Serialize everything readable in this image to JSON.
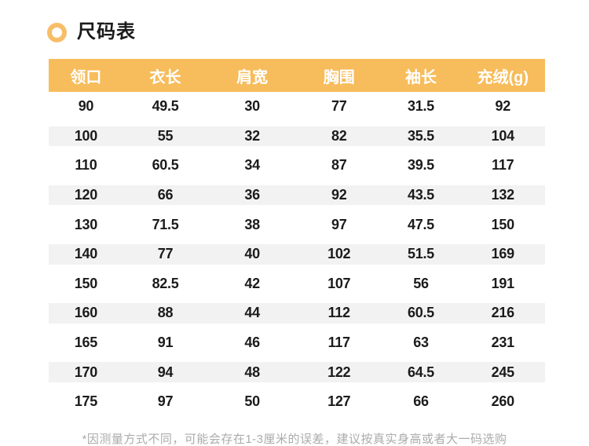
{
  "colors": {
    "header_bg": "#F7BC5B",
    "header_text": "#FFFFFF",
    "stripe": "#F2F2F3",
    "text": "#1B1B1B",
    "bullet_ring": "#F7BE69",
    "footnote_text": "#ABABAB"
  },
  "icons": {
    "section_bullet": "ring-circle"
  },
  "chart_data": {
    "type": "table",
    "title": "尺码表",
    "columns": [
      "领口",
      "衣长",
      "肩宽",
      "胸围",
      "袖长",
      "充绒(g)"
    ],
    "rows": [
      [
        "90",
        "49.5",
        "30",
        "77",
        "31.5",
        "92"
      ],
      [
        "100",
        "55",
        "32",
        "82",
        "35.5",
        "104"
      ],
      [
        "110",
        "60.5",
        "34",
        "87",
        "39.5",
        "117"
      ],
      [
        "120",
        "66",
        "36",
        "92",
        "43.5",
        "132"
      ],
      [
        "130",
        "71.5",
        "38",
        "97",
        "47.5",
        "150"
      ],
      [
        "140",
        "77",
        "40",
        "102",
        "51.5",
        "169"
      ],
      [
        "150",
        "82.5",
        "42",
        "107",
        "56",
        "191"
      ],
      [
        "160",
        "88",
        "44",
        "112",
        "60.5",
        "216"
      ],
      [
        "165",
        "91",
        "46",
        "117",
        "63",
        "231"
      ],
      [
        "170",
        "94",
        "48",
        "122",
        "64.5",
        "245"
      ],
      [
        "175",
        "97",
        "50",
        "127",
        "66",
        "260"
      ]
    ],
    "footnote": "*因测量方式不同，可能会存在1-3厘米的误差，建议按真实身高或者大一码选购",
    "layout_hints": {
      "header_style": "solid-fill",
      "zebra_stripes": true,
      "grid": false
    }
  }
}
